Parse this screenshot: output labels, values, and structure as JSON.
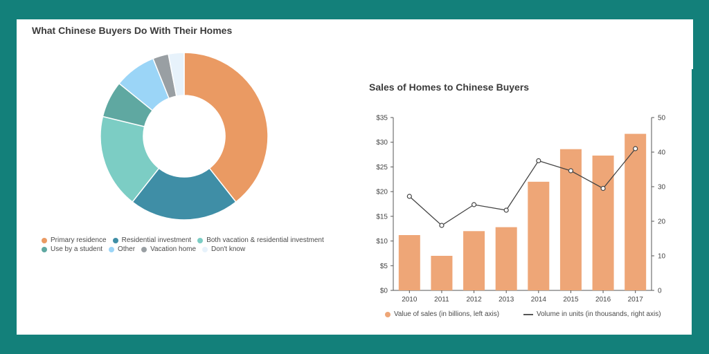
{
  "chart_data": [
    {
      "type": "pie",
      "title": "What Chinese Buyers Do With Their Homes",
      "donut": true,
      "categories": [
        "Primary residence",
        "Residential investment",
        "Both vacation & residential investment",
        "Use by a student",
        "Other",
        "Vacation home",
        "Don't know"
      ],
      "values": [
        39,
        21,
        18,
        7,
        8,
        3,
        3
      ],
      "colors": [
        "#ea9a63",
        "#3f8ea6",
        "#7ccdc4",
        "#5fa8a1",
        "#9bd5f7",
        "#999fa3",
        "#e7f2fb"
      ],
      "legend_position": "bottom"
    },
    {
      "type": "bar",
      "title": "Sales of Homes to Chinese Buyers",
      "categories": [
        "2010",
        "2011",
        "2012",
        "2013",
        "2014",
        "2015",
        "2016",
        "2017"
      ],
      "series": [
        {
          "name": "Value of sales (in billions, left axis)",
          "type": "bar",
          "axis": "left",
          "values": [
            11.2,
            7.0,
            12.0,
            12.8,
            22.0,
            28.6,
            27.3,
            31.7
          ],
          "color": "#eea677"
        },
        {
          "name": "Volume in units (in thousands, right axis)",
          "type": "line",
          "axis": "right",
          "values": [
            27.2,
            18.8,
            24.8,
            23.2,
            37.5,
            34.6,
            29.5,
            41.0
          ],
          "color": "#444444"
        }
      ],
      "ylim": [
        0,
        35
      ],
      "yticks": [
        "$0",
        "$5",
        "$10",
        "$15",
        "$20",
        "$25",
        "$30",
        "$35"
      ],
      "y2lim": [
        0,
        50
      ],
      "y2ticks": [
        "0",
        "10",
        "20",
        "30",
        "40",
        "50"
      ],
      "legend_position": "bottom",
      "grid": false
    }
  ]
}
